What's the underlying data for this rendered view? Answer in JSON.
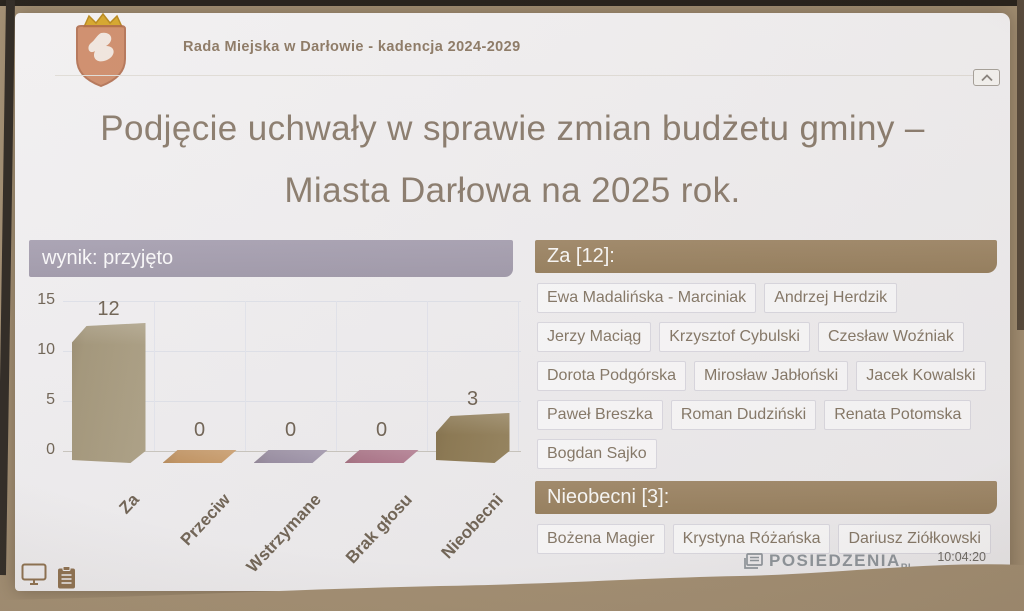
{
  "header": {
    "title": "Rada Miejska w Darłowie - kadencja 2024-2029"
  },
  "slide_title": {
    "line1": "Podjęcie uchwały w sprawie zmian budżetu gminy –",
    "line2": "Miasta Darłowa na 2025 rok."
  },
  "chart_data": {
    "type": "bar",
    "title": "wynik: przyjęto",
    "categories": [
      "Za",
      "Przeciw",
      "Wstrzymane",
      "Brak głosu",
      "Nieobecni"
    ],
    "values": [
      12,
      0,
      0,
      0,
      3
    ],
    "bar_colors": [
      "#a89c80",
      "#c4915a",
      "#958aa4",
      "#aa6d86",
      "#8f7c55"
    ],
    "xlabel": "",
    "ylabel": "",
    "ylim": [
      0,
      15
    ],
    "yticks": [
      15,
      10,
      5,
      0
    ],
    "grid": true,
    "style": "3d",
    "legend": "none"
  },
  "vote_groups": [
    {
      "label": "Za [12]:",
      "names": [
        "Ewa Madalińska - Marciniak",
        "Andrzej Herdzik",
        "Jerzy Maciąg",
        "Krzysztof Cybulski",
        "Czesław Woźniak",
        "Dorota Podgórska",
        "Mirosław Jabłoński",
        "Jacek Kowalski",
        "Paweł Breszka",
        "Roman Dudziński",
        "Renata Potomska",
        "Bogdan Sajko"
      ]
    },
    {
      "label": "Nieobecni [3]:",
      "names": [
        "Bożena Magier",
        "Krystyna Różańska",
        "Dariusz Ziółkowski"
      ]
    }
  ],
  "footer": {
    "brand": "POSIEDZENIA",
    "brand_suffix": "PL",
    "time": "10:04:20"
  },
  "icons": [
    "coat-of-arms",
    "chevron-up-icon",
    "monitor-icon",
    "clipboard-icon",
    "documents-icon"
  ],
  "colors": {
    "result_banner": "#a19bad",
    "group_banner": "#9c8566",
    "slide_bg": "#f1f0f3",
    "wall": "#a28e72",
    "text_brown": "#8b7d6f"
  }
}
